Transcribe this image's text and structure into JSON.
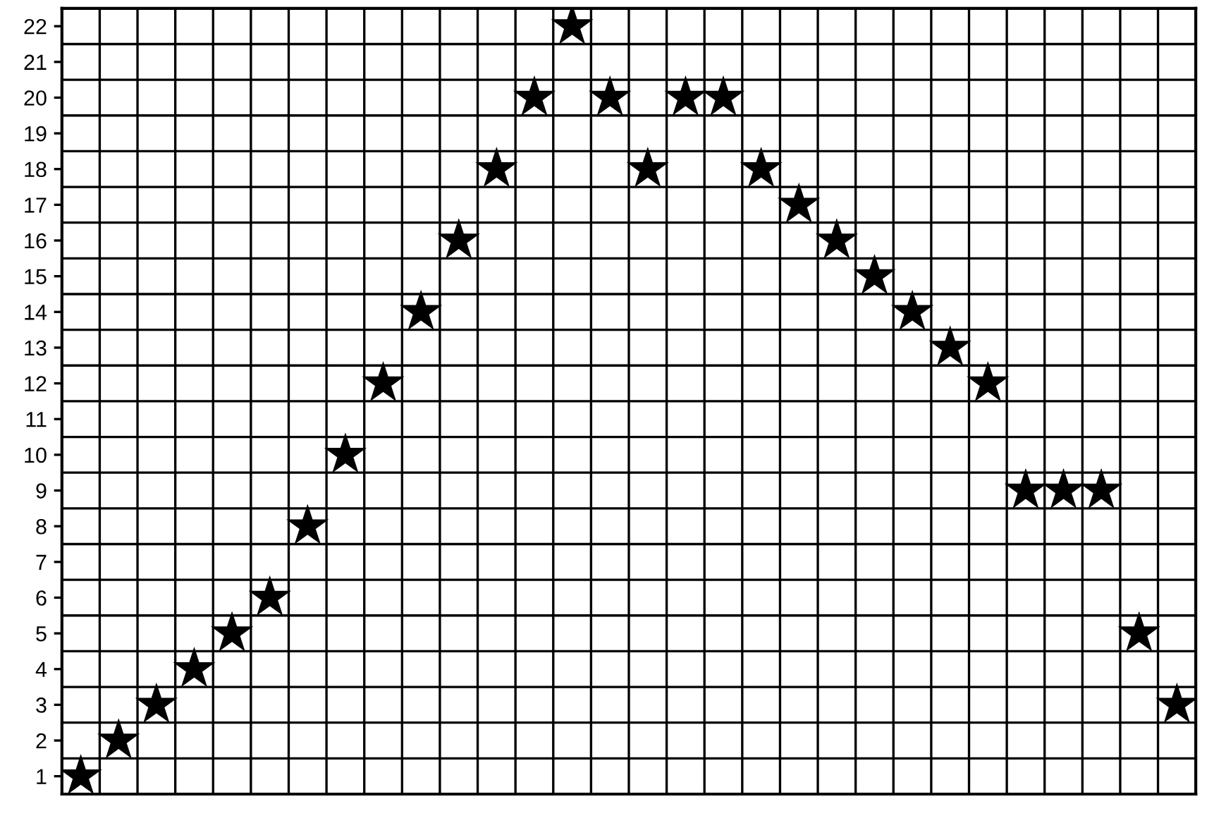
{
  "chart_data": {
    "type": "scatter",
    "categories": [
      null,
      null,
      null,
      null,
      null,
      null,
      null,
      null,
      null,
      null,
      null,
      null,
      null,
      null,
      null,
      null,
      null,
      null,
      null,
      null,
      null,
      null,
      null,
      null,
      null,
      null,
      null,
      null,
      null,
      null
    ],
    "values": [
      1,
      2,
      3,
      4,
      5,
      6,
      8,
      10,
      12,
      14,
      16,
      18,
      20,
      22,
      20,
      18,
      20,
      20,
      18,
      17,
      16,
      15,
      14,
      13,
      12,
      9,
      9,
      9,
      5,
      3
    ],
    "color": "#000000",
    "marker": "star",
    "ylim": [
      0.5,
      22.5
    ],
    "yticks": [
      1,
      2,
      3,
      4,
      5,
      6,
      7,
      8,
      9,
      10,
      11,
      12,
      13,
      14,
      15,
      16,
      17,
      18,
      19,
      20,
      21,
      22
    ],
    "grid": true
  }
}
